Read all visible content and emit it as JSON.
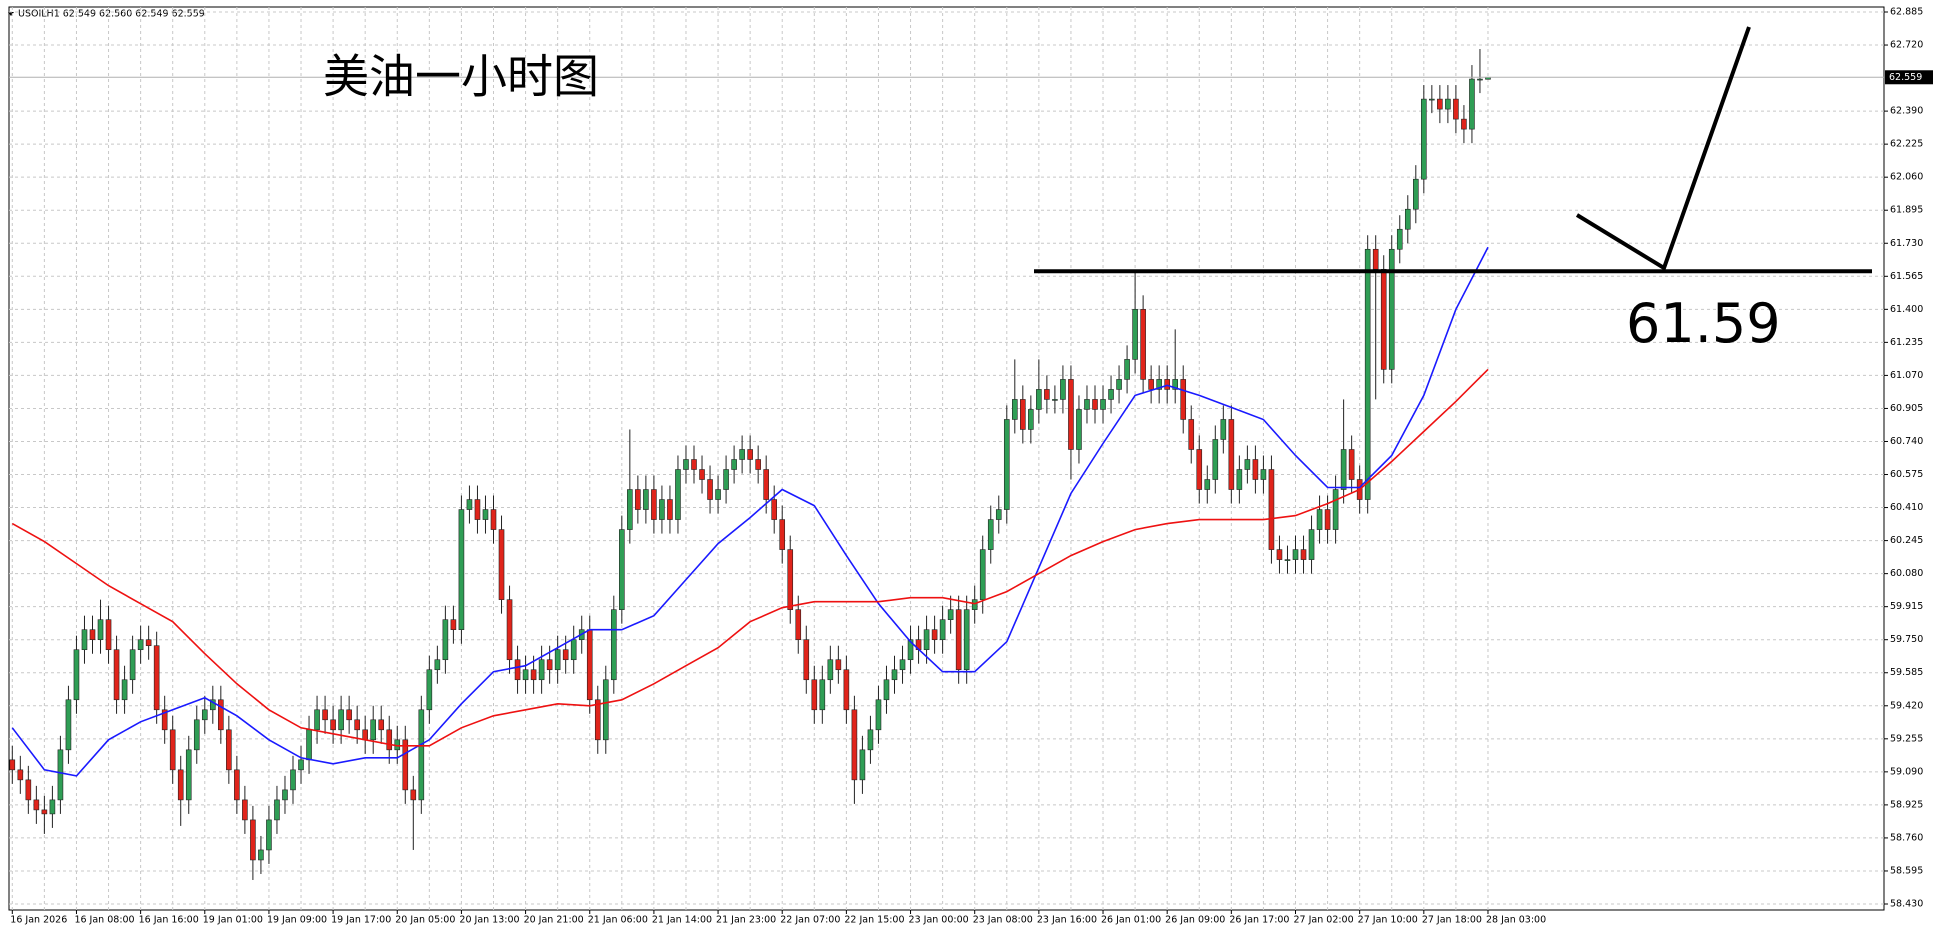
{
  "chart_data": {
    "type": "candlestick",
    "header": "USOILH1 62.549 62.560 62.549 62.559",
    "title": "美油一小时图",
    "level": 61.59,
    "grid": true,
    "colors": {
      "up": "#2f9e55",
      "down": "#e0241b",
      "wick": "#222222",
      "level": "#000000"
    },
    "categories": [
      "16 Jan 2026",
      null,
      null,
      null,
      null,
      null,
      null,
      null,
      "16 Jan 08:00",
      null,
      null,
      null,
      null,
      null,
      null,
      null,
      "16 Jan 16:00",
      null,
      null,
      null,
      null,
      null,
      null,
      null,
      "19 Jan 01:00",
      null,
      null,
      null,
      null,
      null,
      null,
      null,
      "19 Jan 09:00",
      null,
      null,
      null,
      null,
      null,
      null,
      null,
      "19 Jan 17:00",
      null,
      null,
      null,
      null,
      null,
      null,
      null,
      "20 Jan 05:00",
      null,
      null,
      null,
      null,
      null,
      null,
      null,
      "20 Jan 13:00",
      null,
      null,
      null,
      null,
      null,
      null,
      null,
      "20 Jan 21:00",
      null,
      null,
      null,
      null,
      null,
      null,
      null,
      "21 Jan 06:00",
      null,
      null,
      null,
      null,
      null,
      null,
      null,
      "21 Jan 14:00",
      null,
      null,
      null,
      null,
      null,
      null,
      null,
      "21 Jan 23:00",
      null,
      null,
      null,
      null,
      null,
      null,
      null,
      "22 Jan 07:00",
      null,
      null,
      null,
      null,
      null,
      null,
      null,
      "22 Jan 15:00",
      null,
      null,
      null,
      null,
      null,
      null,
      null,
      "23 Jan 00:00",
      null,
      null,
      null,
      null,
      null,
      null,
      null,
      "23 Jan 08:00",
      null,
      null,
      null,
      null,
      null,
      null,
      null,
      "23 Jan 16:00",
      null,
      null,
      null,
      null,
      null,
      null,
      null,
      "26 Jan 01:00",
      null,
      null,
      null,
      null,
      null,
      null,
      null,
      "26 Jan 09:00",
      null,
      null,
      null,
      null,
      null,
      null,
      null,
      "26 Jan 17:00",
      null,
      null,
      null,
      null,
      null,
      null,
      null,
      "27 Jan 02:00",
      null,
      null,
      null,
      null,
      null,
      null,
      null,
      "27 Jan 10:00",
      null,
      null,
      null,
      null,
      null,
      null,
      null,
      "27 Jan 18:00",
      null,
      null,
      null,
      null,
      null,
      null,
      null,
      "28 Jan 03:00"
    ],
    "open": [
      59.15,
      59.1,
      59.05,
      58.95,
      58.9,
      58.88,
      58.95,
      59.2,
      59.45,
      59.7,
      59.8,
      59.75,
      59.85,
      59.7,
      59.45,
      59.55,
      59.7,
      59.75,
      59.72,
      59.4,
      59.3,
      59.1,
      58.95,
      59.2,
      59.35,
      59.4,
      59.45,
      59.3,
      59.1,
      58.95,
      58.85,
      58.65,
      58.7,
      58.85,
      58.95,
      59.0,
      59.1,
      59.15,
      59.3,
      59.4,
      59.35,
      59.3,
      59.4,
      59.35,
      59.3,
      59.25,
      59.35,
      59.3,
      59.2,
      59.25,
      59.0,
      58.95,
      59.4,
      59.6,
      59.65,
      59.85,
      59.8,
      60.4,
      60.45,
      60.35,
      60.4,
      60.3,
      59.95,
      59.65,
      59.55,
      59.6,
      59.55,
      59.65,
      59.6,
      59.7,
      59.65,
      59.75,
      59.8,
      59.45,
      59.25,
      59.55,
      59.9,
      60.3,
      60.5,
      60.4,
      60.5,
      60.35,
      60.45,
      60.35,
      60.6,
      60.65,
      60.6,
      60.55,
      60.45,
      60.5,
      60.6,
      60.65,
      60.7,
      60.65,
      60.6,
      60.45,
      60.35,
      60.2,
      59.9,
      59.75,
      59.55,
      59.4,
      59.55,
      59.65,
      59.6,
      59.4,
      59.05,
      59.2,
      59.3,
      59.45,
      59.55,
      59.6,
      59.65,
      59.75,
      59.7,
      59.8,
      59.75,
      59.85,
      59.9,
      59.6,
      59.9,
      59.95,
      60.2,
      60.35,
      60.4,
      60.85,
      60.95,
      60.8,
      60.9,
      61.0,
      60.95,
      60.95,
      61.05,
      60.7,
      60.9,
      60.95,
      60.9,
      60.95,
      61.0,
      61.05,
      61.15,
      61.4,
      61.05,
      61.0,
      61.05,
      61.0,
      61.05,
      60.85,
      60.7,
      60.5,
      60.55,
      60.75,
      60.85,
      60.5,
      60.6,
      60.65,
      60.55,
      60.6,
      60.2,
      60.15,
      60.15,
      60.2,
      60.15,
      60.3,
      60.4,
      60.3,
      60.5,
      60.7,
      60.55,
      60.45,
      61.7,
      61.6,
      61.1,
      61.7,
      61.8,
      61.9,
      62.05,
      62.45,
      62.45,
      62.4,
      62.45,
      62.35,
      62.3,
      62.55,
      62.549
    ],
    "high": [
      59.22,
      59.17,
      59.12,
      59.02,
      58.97,
      59.02,
      59.27,
      59.52,
      59.77,
      59.87,
      59.87,
      59.95,
      59.92,
      59.77,
      59.62,
      59.77,
      59.82,
      59.82,
      59.79,
      59.47,
      59.37,
      59.17,
      59.27,
      59.42,
      59.47,
      59.52,
      59.52,
      59.37,
      59.17,
      59.02,
      58.92,
      58.77,
      58.92,
      59.02,
      59.07,
      59.17,
      59.22,
      59.37,
      59.47,
      59.47,
      59.42,
      59.47,
      59.47,
      59.42,
      59.37,
      59.42,
      59.42,
      59.37,
      59.32,
      59.32,
      59.07,
      59.47,
      59.67,
      59.72,
      59.92,
      59.92,
      60.47,
      60.52,
      60.52,
      60.47,
      60.47,
      60.37,
      60.02,
      59.72,
      59.67,
      59.67,
      59.72,
      59.72,
      59.77,
      59.77,
      59.82,
      59.87,
      59.87,
      59.52,
      59.62,
      59.97,
      60.37,
      60.8,
      60.57,
      60.57,
      60.57,
      60.52,
      60.52,
      60.67,
      60.72,
      60.72,
      60.67,
      60.62,
      60.57,
      60.67,
      60.72,
      60.77,
      60.77,
      60.72,
      60.67,
      60.52,
      60.42,
      60.27,
      59.97,
      59.82,
      59.62,
      59.62,
      59.72,
      59.72,
      59.67,
      59.47,
      59.27,
      59.37,
      59.52,
      59.62,
      59.67,
      59.72,
      59.82,
      59.82,
      59.87,
      59.87,
      59.92,
      59.97,
      59.97,
      59.97,
      60.02,
      60.27,
      60.42,
      60.47,
      60.92,
      61.15,
      61.02,
      60.97,
      61.15,
      61.07,
      61.02,
      61.12,
      61.12,
      60.97,
      61.02,
      61.02,
      61.02,
      61.07,
      61.12,
      61.22,
      61.59,
      61.47,
      61.12,
      61.12,
      61.12,
      61.3,
      61.12,
      60.92,
      60.77,
      60.62,
      60.82,
      60.92,
      60.92,
      60.67,
      60.72,
      60.72,
      60.67,
      60.67,
      60.27,
      60.22,
      60.27,
      60.27,
      60.37,
      60.47,
      60.47,
      60.57,
      60.95,
      60.77,
      60.62,
      61.77,
      61.77,
      61.67,
      61.77,
      61.87,
      61.97,
      62.12,
      62.52,
      62.52,
      62.52,
      62.52,
      62.52,
      62.42,
      62.62,
      62.7,
      62.56
    ],
    "low": [
      59.03,
      58.98,
      58.88,
      58.83,
      58.78,
      58.81,
      58.88,
      59.13,
      59.38,
      59.63,
      59.68,
      59.68,
      59.63,
      59.38,
      59.38,
      59.48,
      59.63,
      59.65,
      59.33,
      59.23,
      59.03,
      58.82,
      58.88,
      59.13,
      59.28,
      59.33,
      59.23,
      59.03,
      58.88,
      58.78,
      58.55,
      58.58,
      58.63,
      58.78,
      58.88,
      58.93,
      59.03,
      59.08,
      59.23,
      59.28,
      59.23,
      59.23,
      59.28,
      59.23,
      59.18,
      59.18,
      59.23,
      59.13,
      59.13,
      58.93,
      58.7,
      58.88,
      59.33,
      59.53,
      59.58,
      59.73,
      59.73,
      60.33,
      60.28,
      60.28,
      60.23,
      59.88,
      59.58,
      59.48,
      59.48,
      59.48,
      59.48,
      59.53,
      59.53,
      59.58,
      59.58,
      59.68,
      59.38,
      59.18,
      59.18,
      59.48,
      59.83,
      60.23,
      60.33,
      60.33,
      60.28,
      60.28,
      60.28,
      60.28,
      60.53,
      60.53,
      60.48,
      60.38,
      60.38,
      60.43,
      60.53,
      60.58,
      60.58,
      60.53,
      60.38,
      60.28,
      60.13,
      59.83,
      59.68,
      59.48,
      59.33,
      59.33,
      59.48,
      59.53,
      59.33,
      58.93,
      58.98,
      59.13,
      59.23,
      59.38,
      59.48,
      59.53,
      59.58,
      59.63,
      59.63,
      59.68,
      59.68,
      59.78,
      59.53,
      59.53,
      59.83,
      59.88,
      60.13,
      60.28,
      60.33,
      60.78,
      60.73,
      60.73,
      60.83,
      60.88,
      60.88,
      60.88,
      60.55,
      60.63,
      60.83,
      60.83,
      60.83,
      60.88,
      60.93,
      60.98,
      61.08,
      60.98,
      60.93,
      60.93,
      60.93,
      60.93,
      60.78,
      60.63,
      60.43,
      60.43,
      60.48,
      60.68,
      60.43,
      60.43,
      60.53,
      60.48,
      60.48,
      60.13,
      60.08,
      60.08,
      60.08,
      60.08,
      60.08,
      60.23,
      60.23,
      60.23,
      60.43,
      60.48,
      60.38,
      60.38,
      60.95,
      61.03,
      61.03,
      61.63,
      61.73,
      61.83,
      61.98,
      62.38,
      62.33,
      62.33,
      62.28,
      62.23,
      62.23,
      62.48,
      62.549
    ],
    "close": [
      59.1,
      59.05,
      58.95,
      58.9,
      58.88,
      58.95,
      59.2,
      59.45,
      59.7,
      59.8,
      59.75,
      59.85,
      59.7,
      59.45,
      59.55,
      59.7,
      59.75,
      59.72,
      59.4,
      59.3,
      59.1,
      58.95,
      59.2,
      59.35,
      59.4,
      59.45,
      59.3,
      59.1,
      58.95,
      58.85,
      58.65,
      58.7,
      58.85,
      58.95,
      59.0,
      59.1,
      59.15,
      59.3,
      59.4,
      59.35,
      59.3,
      59.4,
      59.35,
      59.3,
      59.25,
      59.35,
      59.3,
      59.2,
      59.25,
      59.0,
      58.95,
      59.4,
      59.6,
      59.65,
      59.85,
      59.8,
      60.4,
      60.45,
      60.35,
      60.4,
      60.3,
      59.95,
      59.65,
      59.55,
      59.6,
      59.55,
      59.65,
      59.6,
      59.7,
      59.65,
      59.75,
      59.8,
      59.45,
      59.25,
      59.55,
      59.9,
      60.3,
      60.5,
      60.4,
      60.5,
      60.35,
      60.45,
      60.35,
      60.6,
      60.65,
      60.6,
      60.55,
      60.45,
      60.5,
      60.6,
      60.65,
      60.7,
      60.65,
      60.6,
      60.45,
      60.35,
      60.2,
      59.9,
      59.75,
      59.55,
      59.4,
      59.55,
      59.65,
      59.6,
      59.4,
      59.05,
      59.2,
      59.3,
      59.45,
      59.55,
      59.6,
      59.65,
      59.75,
      59.7,
      59.8,
      59.75,
      59.85,
      59.9,
      59.6,
      59.9,
      59.95,
      60.2,
      60.35,
      60.4,
      60.85,
      60.95,
      60.8,
      60.9,
      61.0,
      60.95,
      60.95,
      61.05,
      60.7,
      60.9,
      60.95,
      60.9,
      60.95,
      61.0,
      61.05,
      61.15,
      61.4,
      61.05,
      61.0,
      61.05,
      61.0,
      61.05,
      60.85,
      60.7,
      60.5,
      60.55,
      60.75,
      60.85,
      60.5,
      60.6,
      60.65,
      60.55,
      60.6,
      60.2,
      60.15,
      60.15,
      60.2,
      60.15,
      60.3,
      60.4,
      60.3,
      60.5,
      60.7,
      60.55,
      60.45,
      61.7,
      61.6,
      61.1,
      61.7,
      61.8,
      61.9,
      62.05,
      62.45,
      62.45,
      62.4,
      62.45,
      62.35,
      62.3,
      62.55,
      62.55,
      62.559
    ],
    "series": [
      {
        "color": "#1a1aff",
        "x": [
          0,
          4,
          8,
          12,
          16,
          20,
          24,
          28,
          32,
          36,
          40,
          44,
          48,
          52,
          56,
          60,
          64,
          68,
          72,
          76,
          80,
          84,
          88,
          92,
          96,
          100,
          104,
          108,
          112,
          116,
          120,
          124,
          128,
          132,
          136,
          140,
          144,
          148,
          152,
          156,
          160,
          164,
          168,
          172,
          176,
          180,
          184
        ],
        "values": [
          59.31,
          59.1,
          59.07,
          59.25,
          59.34,
          59.4,
          59.46,
          59.37,
          59.25,
          59.16,
          59.13,
          59.16,
          59.16,
          59.25,
          59.43,
          59.59,
          59.62,
          59.71,
          59.8,
          59.8,
          59.87,
          60.05,
          60.23,
          60.36,
          60.5,
          60.42,
          60.17,
          59.93,
          59.74,
          59.59,
          59.59,
          59.74,
          60.11,
          60.48,
          60.73,
          60.97,
          61.02,
          60.97,
          60.91,
          60.85,
          60.67,
          60.51,
          60.51,
          60.67,
          60.97,
          61.4,
          61.71
        ]
      },
      {
        "color": "#ee1111",
        "x": [
          0,
          4,
          8,
          12,
          16,
          20,
          24,
          28,
          32,
          36,
          40,
          44,
          48,
          52,
          56,
          60,
          64,
          68,
          72,
          76,
          80,
          84,
          88,
          92,
          96,
          100,
          104,
          108,
          112,
          116,
          120,
          124,
          128,
          132,
          136,
          140,
          144,
          148,
          152,
          156,
          160,
          164,
          168,
          172,
          176,
          180,
          184
        ],
        "values": [
          60.33,
          60.24,
          60.13,
          60.02,
          59.93,
          59.84,
          59.68,
          59.53,
          59.4,
          59.31,
          59.28,
          59.25,
          59.22,
          59.22,
          59.31,
          59.37,
          59.4,
          59.43,
          59.42,
          59.45,
          59.53,
          59.62,
          59.71,
          59.84,
          59.91,
          59.94,
          59.94,
          59.94,
          59.96,
          59.96,
          59.93,
          59.99,
          60.08,
          60.17,
          60.24,
          60.3,
          60.33,
          60.35,
          60.35,
          60.35,
          60.37,
          60.43,
          60.5,
          60.64,
          60.79,
          60.94,
          61.1
        ]
      }
    ],
    "ylim": [
      58.43,
      62.885
    ],
    "yticks": [
      {
        "value": 58.43,
        "label": "58.430"
      },
      58.595,
      {
        "value": 58.76,
        "label": "58.760"
      },
      58.925,
      {
        "value": 59.09,
        "label": "59.090"
      },
      59.255,
      {
        "value": 59.42,
        "label": "59.420"
      },
      59.585,
      {
        "value": 59.75,
        "label": "59.750"
      },
      59.915,
      {
        "value": 60.08,
        "label": "60.080"
      },
      60.245,
      {
        "value": 60.41,
        "label": "60.410"
      },
      60.575,
      {
        "value": 60.74,
        "label": "60.740"
      },
      60.905,
      {
        "value": 61.07,
        "label": "61.070"
      },
      61.235,
      {
        "value": 61.4,
        "label": "61.400"
      },
      61.565,
      {
        "value": 61.73,
        "label": "61.730"
      },
      61.895,
      {
        "value": 62.06,
        "label": "62.060"
      },
      62.225,
      {
        "value": 62.39,
        "label": "62.390"
      },
      {
        "value": 62.72,
        "label": "62.720"
      },
      62.885
    ]
  }
}
